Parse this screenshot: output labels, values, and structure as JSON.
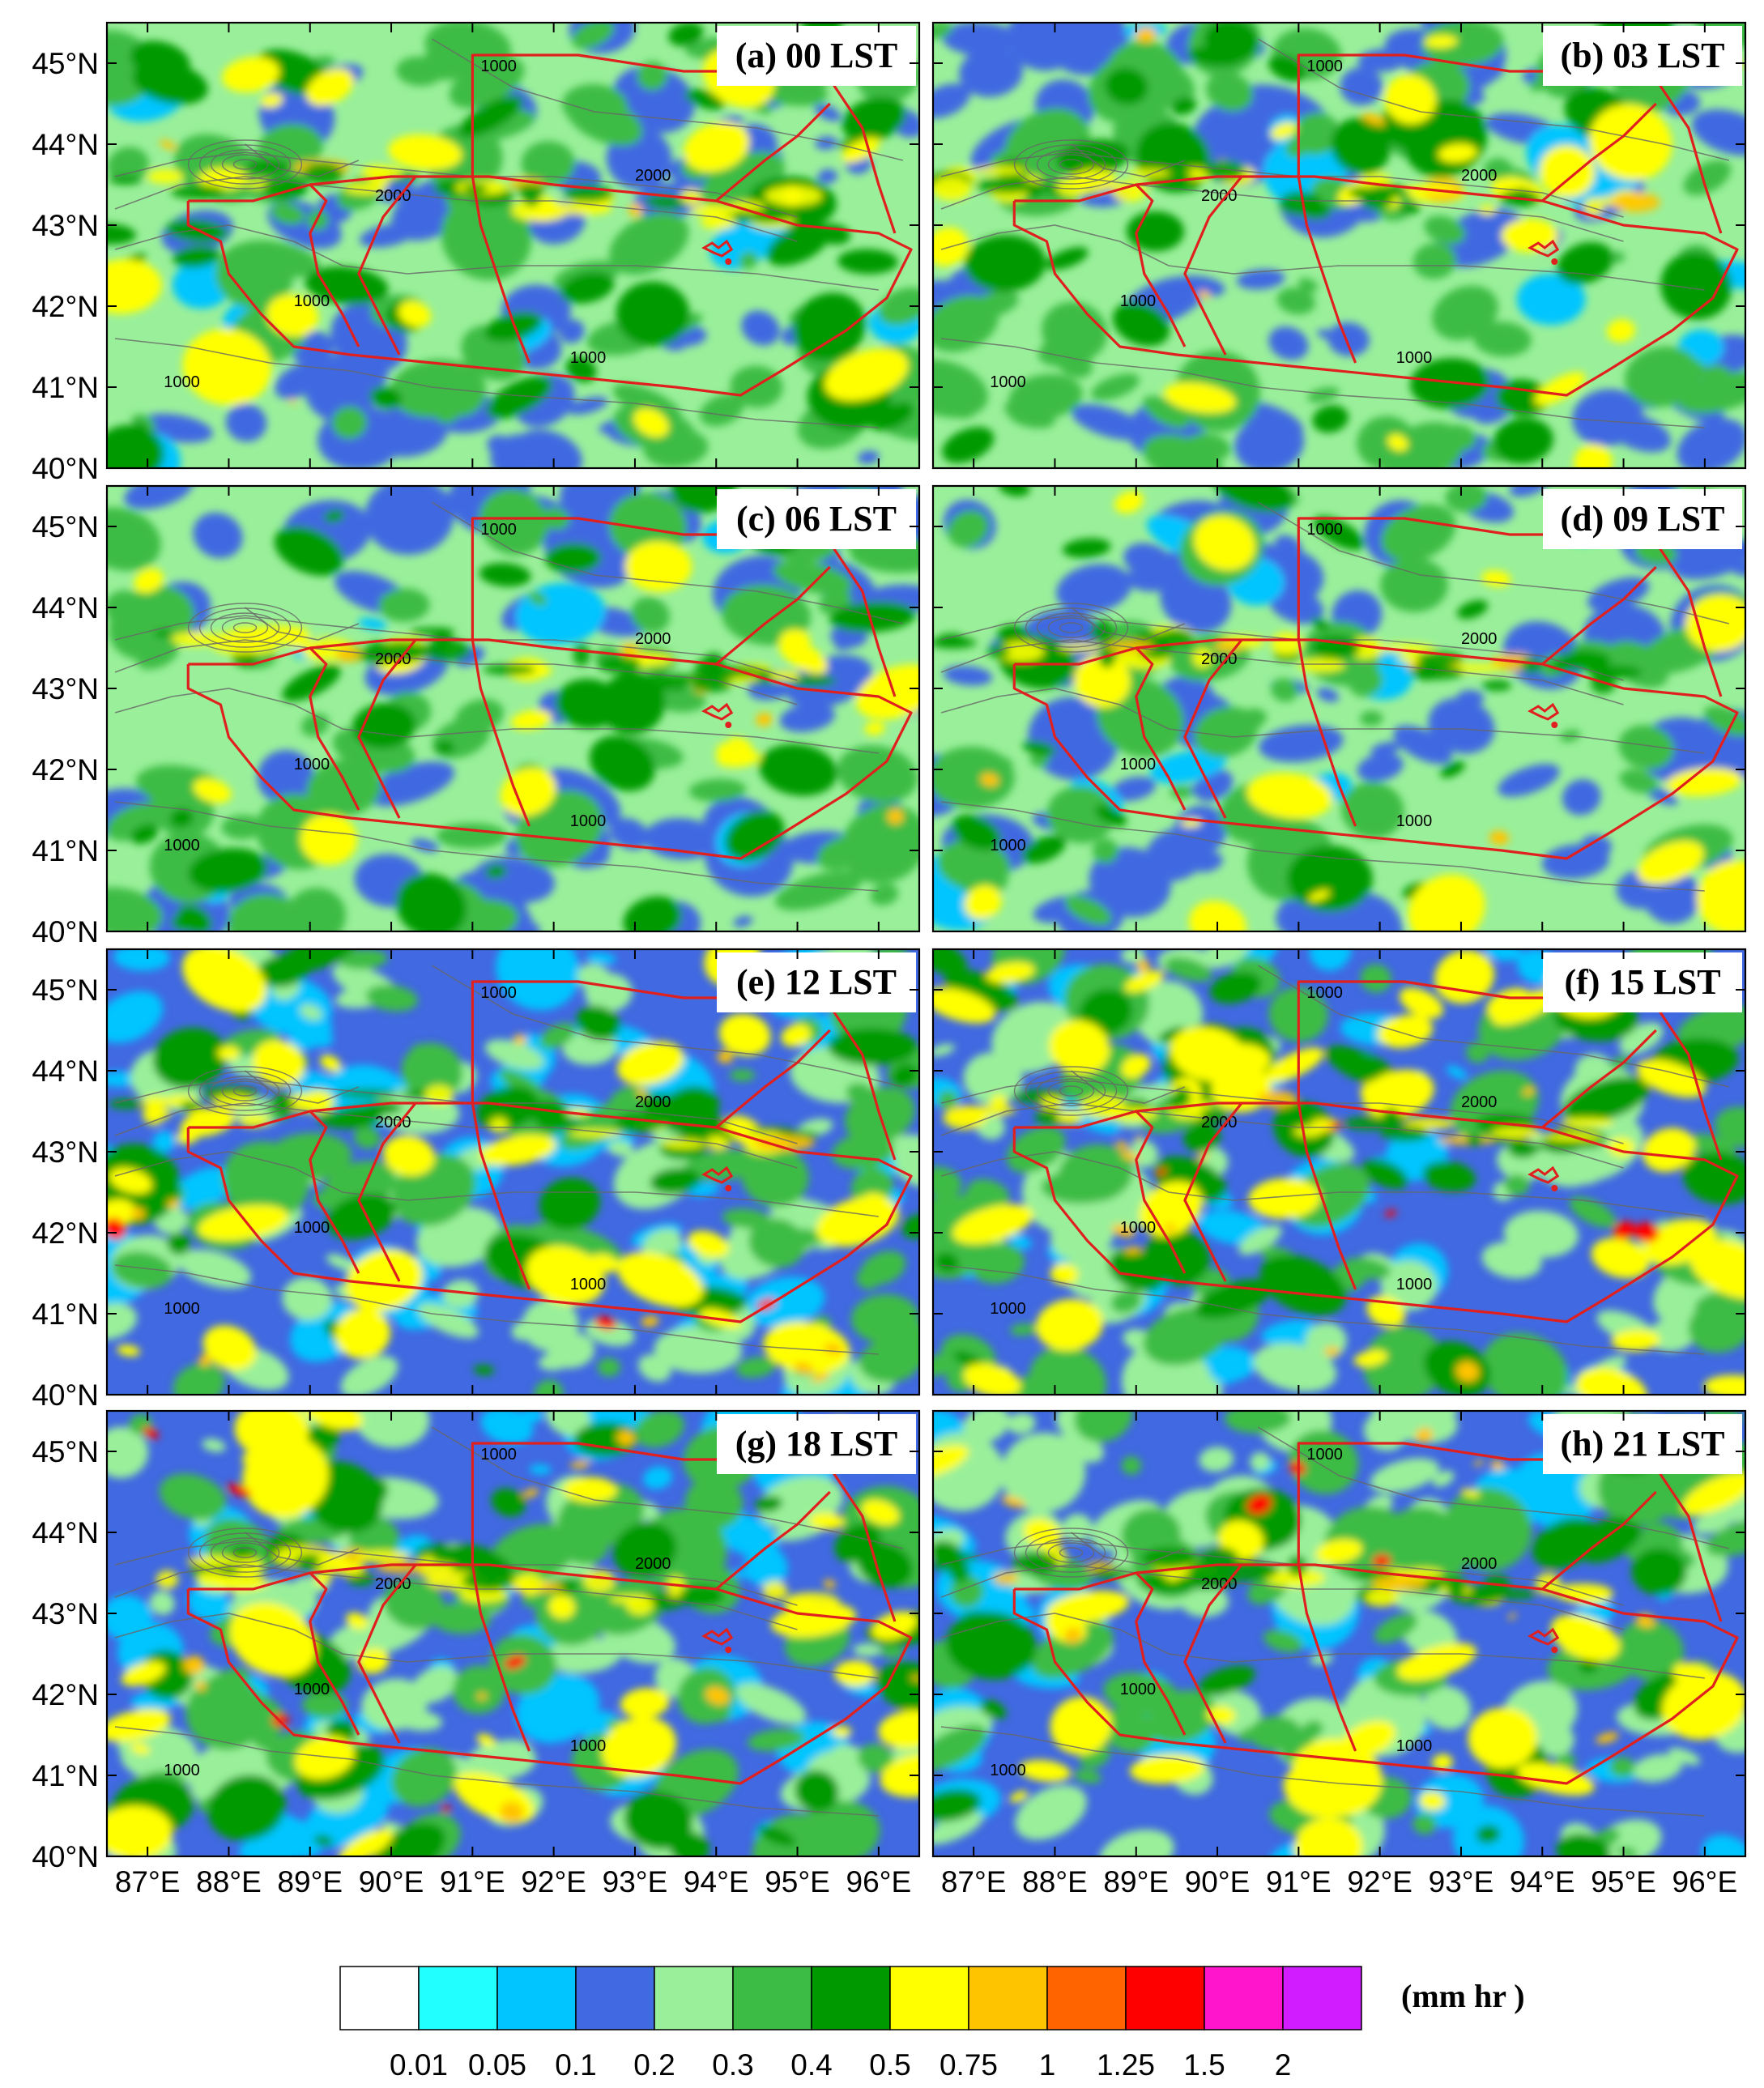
{
  "panels": [
    {
      "label": "(a) 00 LST"
    },
    {
      "label": "(b) 03 LST"
    },
    {
      "label": "(c) 06 LST"
    },
    {
      "label": "(d) 09 LST"
    },
    {
      "label": "(e) 12 LST"
    },
    {
      "label": "(f) 15 LST"
    },
    {
      "label": "(g) 18 LST"
    },
    {
      "label": "(h) 21 LST"
    }
  ],
  "map": {
    "lon_range": [
      86.5,
      96.5
    ],
    "lat_range": [
      40,
      45.5
    ],
    "lat_ticks": [
      {
        "value": 45,
        "label": "45°N"
      },
      {
        "value": 44,
        "label": "44°N"
      },
      {
        "value": 43,
        "label": "43°N"
      },
      {
        "value": 42,
        "label": "42°N"
      },
      {
        "value": 41,
        "label": "41°N"
      },
      {
        "value": 40,
        "label": "40°N"
      }
    ],
    "lon_ticks": [
      {
        "value": 87,
        "label": "87°E"
      },
      {
        "value": 88,
        "label": "88°E"
      },
      {
        "value": 89,
        "label": "89°E"
      },
      {
        "value": 90,
        "label": "90°E"
      },
      {
        "value": 91,
        "label": "91°E"
      },
      {
        "value": 92,
        "label": "92°E"
      },
      {
        "value": 93,
        "label": "93°E"
      },
      {
        "value": 94,
        "label": "94°E"
      },
      {
        "value": 95,
        "label": "95°E"
      },
      {
        "value": 96,
        "label": "96°E"
      }
    ],
    "contour_label_1": "1000",
    "contour_label_2": "2000",
    "boundary_color": "#e0201e",
    "contour_color": "#666666"
  },
  "colorbar": {
    "units": "(mm hr  )",
    "colors": [
      "#ffffff",
      "#22ffff",
      "#00c5ff",
      "#4169e1",
      "#9af09a",
      "#3cbc44",
      "#009a00",
      "#ffff00",
      "#ffc400",
      "#ff6400",
      "#ff0000",
      "#ff16cc",
      "#d01cff"
    ],
    "labels": [
      "0.01",
      "0.05",
      "0.1",
      "0.2",
      "0.3",
      "0.4",
      "0.5",
      "0.75",
      "1",
      "1.25",
      "1.5",
      "2"
    ]
  },
  "fill_colors": {
    "blue": "#4169e1",
    "light_blue": "#00c5ff",
    "light_green": "#9af09a",
    "green": "#3cbc44",
    "dark_green": "#009a00",
    "yellow": "#ffff00",
    "orange": "#ffc400",
    "red": "#ff0000"
  }
}
